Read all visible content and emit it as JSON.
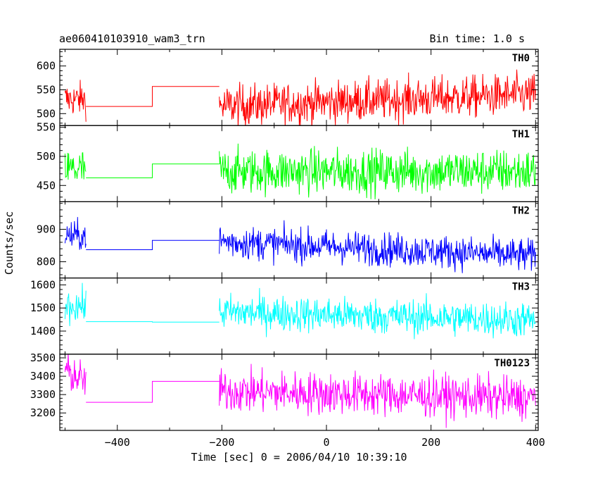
{
  "chart_data": {
    "type": "line",
    "title": "ae060410103910_wam3_trn",
    "subtitle": "Bin time: 1.0 s",
    "xlabel": "Time [sec] 0 = 2006/04/10 10:39:10",
    "ylabel": "Counts/sec",
    "xlim": [
      -510,
      405
    ],
    "x_ticks": [
      -400,
      -200,
      0,
      200,
      400
    ],
    "x_tick_labels": [
      "−400",
      "−200",
      "0",
      "200",
      "400"
    ],
    "grid": false,
    "panels": [
      {
        "name": "TH0",
        "color": "#ff0000",
        "ylim": [
          475,
          635
        ],
        "yticks": [
          500,
          550,
          600
        ],
        "segments": [
          {
            "from": -500,
            "to": -460,
            "mean": 530,
            "noise": 28,
            "trend": 0
          },
          {
            "from": -205,
            "to": 400,
            "mean": 528,
            "noise": 34,
            "trend": 25
          }
        ],
        "steps": [
          [
            -460,
            515
          ],
          [
            -333,
            515
          ],
          [
            -333,
            557
          ],
          [
            -205,
            557
          ]
        ]
      },
      {
        "name": "TH1",
        "color": "#00ff00",
        "ylim": [
          422,
          553
        ],
        "yticks": [
          450,
          500,
          550
        ],
        "segments": [
          {
            "from": -500,
            "to": -460,
            "mean": 478,
            "noise": 28,
            "trend": 0
          },
          {
            "from": -205,
            "to": 400,
            "mean": 474,
            "noise": 30,
            "trend": 0
          }
        ],
        "steps": [
          [
            -460,
            463
          ],
          [
            -333,
            463
          ],
          [
            -333,
            487
          ],
          [
            -205,
            487
          ]
        ]
      },
      {
        "name": "TH2",
        "color": "#0000ff",
        "ylim": [
          750,
          985
        ],
        "yticks": [
          800,
          900
        ],
        "segments": [
          {
            "from": -500,
            "to": -460,
            "mean": 880,
            "noise": 35,
            "trend": 0
          },
          {
            "from": -205,
            "to": 400,
            "mean": 840,
            "noise": 40,
            "trend": -45
          }
        ],
        "steps": [
          [
            -460,
            837
          ],
          [
            -333,
            837
          ],
          [
            -333,
            866
          ],
          [
            -205,
            866
          ]
        ]
      },
      {
        "name": "TH3",
        "color": "#00ffff",
        "ylim": [
          1300,
          1630
        ],
        "yticks": [
          1400,
          1500,
          1600
        ],
        "segments": [
          {
            "from": -500,
            "to": -460,
            "mean": 1510,
            "noise": 55,
            "trend": 0
          },
          {
            "from": -205,
            "to": 400,
            "mean": 1465,
            "noise": 60,
            "trend": -35
          }
        ],
        "steps": [
          [
            -460,
            1441
          ],
          [
            -333,
            1441
          ],
          [
            -333,
            1439
          ],
          [
            -205,
            1439
          ]
        ]
      },
      {
        "name": "TH0123",
        "color": "#ff00ff",
        "ylim": [
          3105,
          3520
        ],
        "yticks": [
          3200,
          3300,
          3400,
          3500
        ],
        "segments": [
          {
            "from": -500,
            "to": -460,
            "mean": 3400,
            "noise": 80,
            "trend": -60
          },
          {
            "from": -205,
            "to": 400,
            "mean": 3300,
            "noise": 90,
            "trend": -40
          }
        ],
        "steps": [
          [
            -460,
            3258
          ],
          [
            -333,
            3258
          ],
          [
            -333,
            3372
          ],
          [
            -205,
            3372
          ]
        ]
      }
    ]
  }
}
